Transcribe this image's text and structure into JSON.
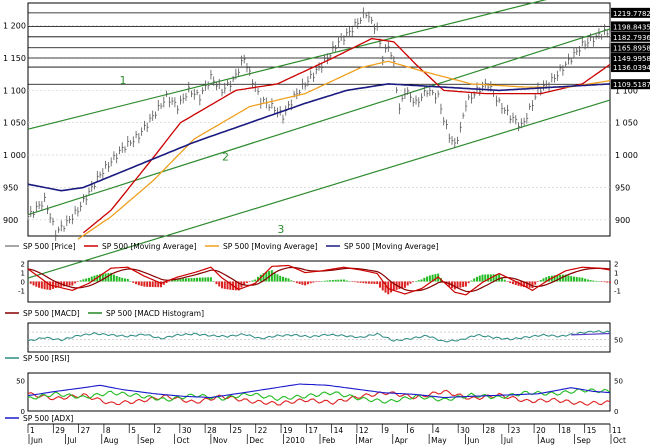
{
  "chart_data": {
    "type": "line",
    "instrument": "SP 500",
    "main": {
      "ylim": [
        875,
        1235
      ],
      "y_ticks": [
        900,
        950,
        1000,
        1050,
        1100,
        1150,
        1200
      ],
      "legend": [
        "SP 500 [Price]",
        "SP 500 [Moving Average]",
        "SP 500 [Moving Average]",
        "SP 500 [Moving Average]"
      ],
      "hlines": [
        1219.7782,
        1198.8435,
        1182.7936,
        1165.8958,
        1149.9958,
        1136.0394,
        1109.5187
      ],
      "channel_labels": [
        "1",
        "2",
        "3"
      ],
      "price_anchors": [
        [
          0,
          905
        ],
        [
          6,
          930
        ],
        [
          8,
          905
        ],
        [
          10,
          880
        ],
        [
          14,
          895
        ],
        [
          18,
          915
        ],
        [
          26,
          970
        ],
        [
          34,
          1010
        ],
        [
          40,
          1030
        ],
        [
          45,
          1060
        ],
        [
          50,
          1090
        ],
        [
          54,
          1075
        ],
        [
          58,
          1100
        ],
        [
          62,
          1090
        ],
        [
          66,
          1120
        ],
        [
          70,
          1100
        ],
        [
          74,
          1115
        ],
        [
          78,
          1150
        ],
        [
          80,
          1125
        ],
        [
          84,
          1085
        ],
        [
          88,
          1075
        ],
        [
          92,
          1060
        ],
        [
          96,
          1090
        ],
        [
          100,
          1110
        ],
        [
          104,
          1130
        ],
        [
          108,
          1150
        ],
        [
          112,
          1175
        ],
        [
          116,
          1190
        ],
        [
          120,
          1210
        ],
        [
          122,
          1220
        ],
        [
          124,
          1205
        ],
        [
          126,
          1195
        ],
        [
          128,
          1150
        ],
        [
          130,
          1170
        ],
        [
          132,
          1140
        ],
        [
          134,
          1070
        ],
        [
          136,
          1100
        ],
        [
          140,
          1080
        ],
        [
          144,
          1100
        ],
        [
          148,
          1090
        ],
        [
          150,
          1055
        ],
        [
          152,
          1030
        ],
        [
          154,
          1015
        ],
        [
          156,
          1040
        ],
        [
          158,
          1080
        ],
        [
          162,
          1100
        ],
        [
          166,
          1110
        ],
        [
          170,
          1080
        ],
        [
          174,
          1060
        ],
        [
          178,
          1045
        ],
        [
          180,
          1060
        ],
        [
          184,
          1100
        ],
        [
          188,
          1110
        ],
        [
          192,
          1130
        ],
        [
          196,
          1150
        ],
        [
          200,
          1170
        ],
        [
          204,
          1180
        ],
        [
          208,
          1190
        ],
        [
          210,
          1185
        ]
      ],
      "ma_red_anchors": [
        [
          20,
          880
        ],
        [
          30,
          915
        ],
        [
          45,
          995
        ],
        [
          55,
          1050
        ],
        [
          75,
          1100
        ],
        [
          90,
          1110
        ],
        [
          110,
          1150
        ],
        [
          124,
          1180
        ],
        [
          132,
          1175
        ],
        [
          140,
          1140
        ],
        [
          150,
          1100
        ],
        [
          165,
          1095
        ],
        [
          185,
          1095
        ],
        [
          200,
          1110
        ],
        [
          210,
          1140
        ]
      ],
      "ma_orange_anchors": [
        [
          18,
          870
        ],
        [
          30,
          905
        ],
        [
          45,
          960
        ],
        [
          60,
          1025
        ],
        [
          80,
          1075
        ],
        [
          100,
          1095
        ],
        [
          120,
          1135
        ],
        [
          130,
          1145
        ],
        [
          142,
          1130
        ],
        [
          160,
          1110
        ],
        [
          180,
          1105
        ],
        [
          195,
          1105
        ],
        [
          210,
          1115
        ]
      ],
      "ma_navy_anchors": [
        [
          0,
          955
        ],
        [
          12,
          945
        ],
        [
          20,
          950
        ],
        [
          40,
          985
        ],
        [
          60,
          1020
        ],
        [
          80,
          1050
        ],
        [
          100,
          1080
        ],
        [
          115,
          1100
        ],
        [
          130,
          1110
        ],
        [
          150,
          1105
        ],
        [
          170,
          1100
        ],
        [
          190,
          1105
        ],
        [
          210,
          1110
        ]
      ]
    },
    "macd": {
      "ylim": [
        -2.3,
        2.3
      ],
      "y_ticks": [
        2,
        1,
        0,
        -1
      ],
      "legend": [
        "SP 500 [MACD]",
        "SP 500 [MACD Histogram]"
      ],
      "line_anchors": [
        [
          0,
          1.4
        ],
        [
          8,
          -0.4
        ],
        [
          16,
          -1.0
        ],
        [
          22,
          -0.2
        ],
        [
          30,
          1.5
        ],
        [
          36,
          1.6
        ],
        [
          42,
          0.6
        ],
        [
          48,
          -0.2
        ],
        [
          54,
          0.5
        ],
        [
          60,
          1.0
        ],
        [
          66,
          1.6
        ],
        [
          70,
          0.4
        ],
        [
          76,
          -0.9
        ],
        [
          82,
          -0.2
        ],
        [
          88,
          1.7
        ],
        [
          94,
          1.8
        ],
        [
          100,
          1.0
        ],
        [
          106,
          1.2
        ],
        [
          114,
          1.6
        ],
        [
          120,
          1.3
        ],
        [
          126,
          0.9
        ],
        [
          130,
          -0.8
        ],
        [
          136,
          -1.4
        ],
        [
          142,
          -0.8
        ],
        [
          148,
          0.5
        ],
        [
          154,
          -1.2
        ],
        [
          158,
          -1.5
        ],
        [
          164,
          -0.1
        ],
        [
          170,
          0.9
        ],
        [
          176,
          0.0
        ],
        [
          182,
          -1.0
        ],
        [
          188,
          0.2
        ],
        [
          194,
          1.2
        ],
        [
          200,
          1.6
        ],
        [
          206,
          1.5
        ],
        [
          210,
          1.3
        ]
      ]
    },
    "rsi": {
      "ylim": [
        15,
        95
      ],
      "y_ticks": [
        50
      ],
      "legend": [
        "SP 500 [RSI]"
      ],
      "anchors": [
        [
          0,
          45
        ],
        [
          6,
          55
        ],
        [
          12,
          48
        ],
        [
          18,
          60
        ],
        [
          24,
          66
        ],
        [
          30,
          62
        ],
        [
          36,
          58
        ],
        [
          42,
          64
        ],
        [
          48,
          52
        ],
        [
          54,
          62
        ],
        [
          60,
          65
        ],
        [
          66,
          60
        ],
        [
          72,
          58
        ],
        [
          78,
          64
        ],
        [
          84,
          52
        ],
        [
          90,
          60
        ],
        [
          96,
          62
        ],
        [
          102,
          57
        ],
        [
          108,
          63
        ],
        [
          114,
          60
        ],
        [
          120,
          55
        ],
        [
          126,
          65
        ],
        [
          132,
          46
        ],
        [
          138,
          52
        ],
        [
          144,
          60
        ],
        [
          150,
          44
        ],
        [
          156,
          48
        ],
        [
          162,
          62
        ],
        [
          168,
          55
        ],
        [
          174,
          50
        ],
        [
          180,
          56
        ],
        [
          186,
          62
        ],
        [
          192,
          58
        ],
        [
          198,
          66
        ],
        [
          204,
          72
        ],
        [
          210,
          70
        ]
      ]
    },
    "adx": {
      "ylim": [
        0,
        62
      ],
      "y_ticks": [
        50,
        0
      ],
      "legend": [
        "SP 500 [ADX]"
      ],
      "adx_anchors": [
        [
          0,
          25
        ],
        [
          10,
          32
        ],
        [
          20,
          38
        ],
        [
          26,
          42
        ],
        [
          34,
          35
        ],
        [
          46,
          28
        ],
        [
          56,
          24
        ],
        [
          66,
          22
        ],
        [
          78,
          30
        ],
        [
          88,
          37
        ],
        [
          98,
          44
        ],
        [
          108,
          42
        ],
        [
          118,
          36
        ],
        [
          128,
          30
        ],
        [
          140,
          27
        ],
        [
          150,
          22
        ],
        [
          160,
          24
        ],
        [
          172,
          26
        ],
        [
          184,
          28
        ],
        [
          196,
          38
        ],
        [
          204,
          32
        ],
        [
          210,
          30
        ]
      ],
      "di_plus_anchors": [
        [
          0,
          20
        ],
        [
          10,
          28
        ],
        [
          20,
          22
        ],
        [
          30,
          30
        ],
        [
          40,
          25
        ],
        [
          50,
          18
        ],
        [
          60,
          26
        ],
        [
          70,
          20
        ],
        [
          80,
          28
        ],
        [
          90,
          20
        ],
        [
          100,
          24
        ],
        [
          110,
          30
        ],
        [
          120,
          20
        ],
        [
          130,
          15
        ],
        [
          140,
          24
        ],
        [
          150,
          18
        ],
        [
          160,
          26
        ],
        [
          170,
          22
        ],
        [
          180,
          30
        ],
        [
          190,
          28
        ],
        [
          200,
          34
        ],
        [
          210,
          32
        ]
      ],
      "di_minus_anchors": [
        [
          0,
          28
        ],
        [
          10,
          20
        ],
        [
          20,
          26
        ],
        [
          30,
          12
        ],
        [
          40,
          16
        ],
        [
          50,
          24
        ],
        [
          60,
          14
        ],
        [
          70,
          24
        ],
        [
          80,
          16
        ],
        [
          90,
          12
        ],
        [
          100,
          18
        ],
        [
          110,
          14
        ],
        [
          120,
          24
        ],
        [
          130,
          30
        ],
        [
          140,
          22
        ],
        [
          150,
          32
        ],
        [
          160,
          20
        ],
        [
          170,
          26
        ],
        [
          180,
          16
        ],
        [
          190,
          18
        ],
        [
          200,
          12
        ],
        [
          210,
          14
        ]
      ]
    },
    "x_axis": {
      "day_labels": [
        "1",
        "29",
        "27",
        "8",
        "5",
        "2",
        "30",
        "28",
        "25",
        "22",
        "19",
        "17",
        "14",
        "12",
        "9",
        "6",
        "4",
        "30",
        "28",
        "23",
        "20",
        "18",
        "15",
        "11"
      ],
      "month_labels": [
        "Jun",
        "Jul",
        "Aug",
        "Sep",
        "Oct",
        "Nov",
        "Dec",
        "2010",
        "Feb",
        "Mar",
        "Apr",
        "May",
        "Jun",
        "Jul",
        "Aug",
        "Sep",
        "Oct"
      ]
    }
  }
}
